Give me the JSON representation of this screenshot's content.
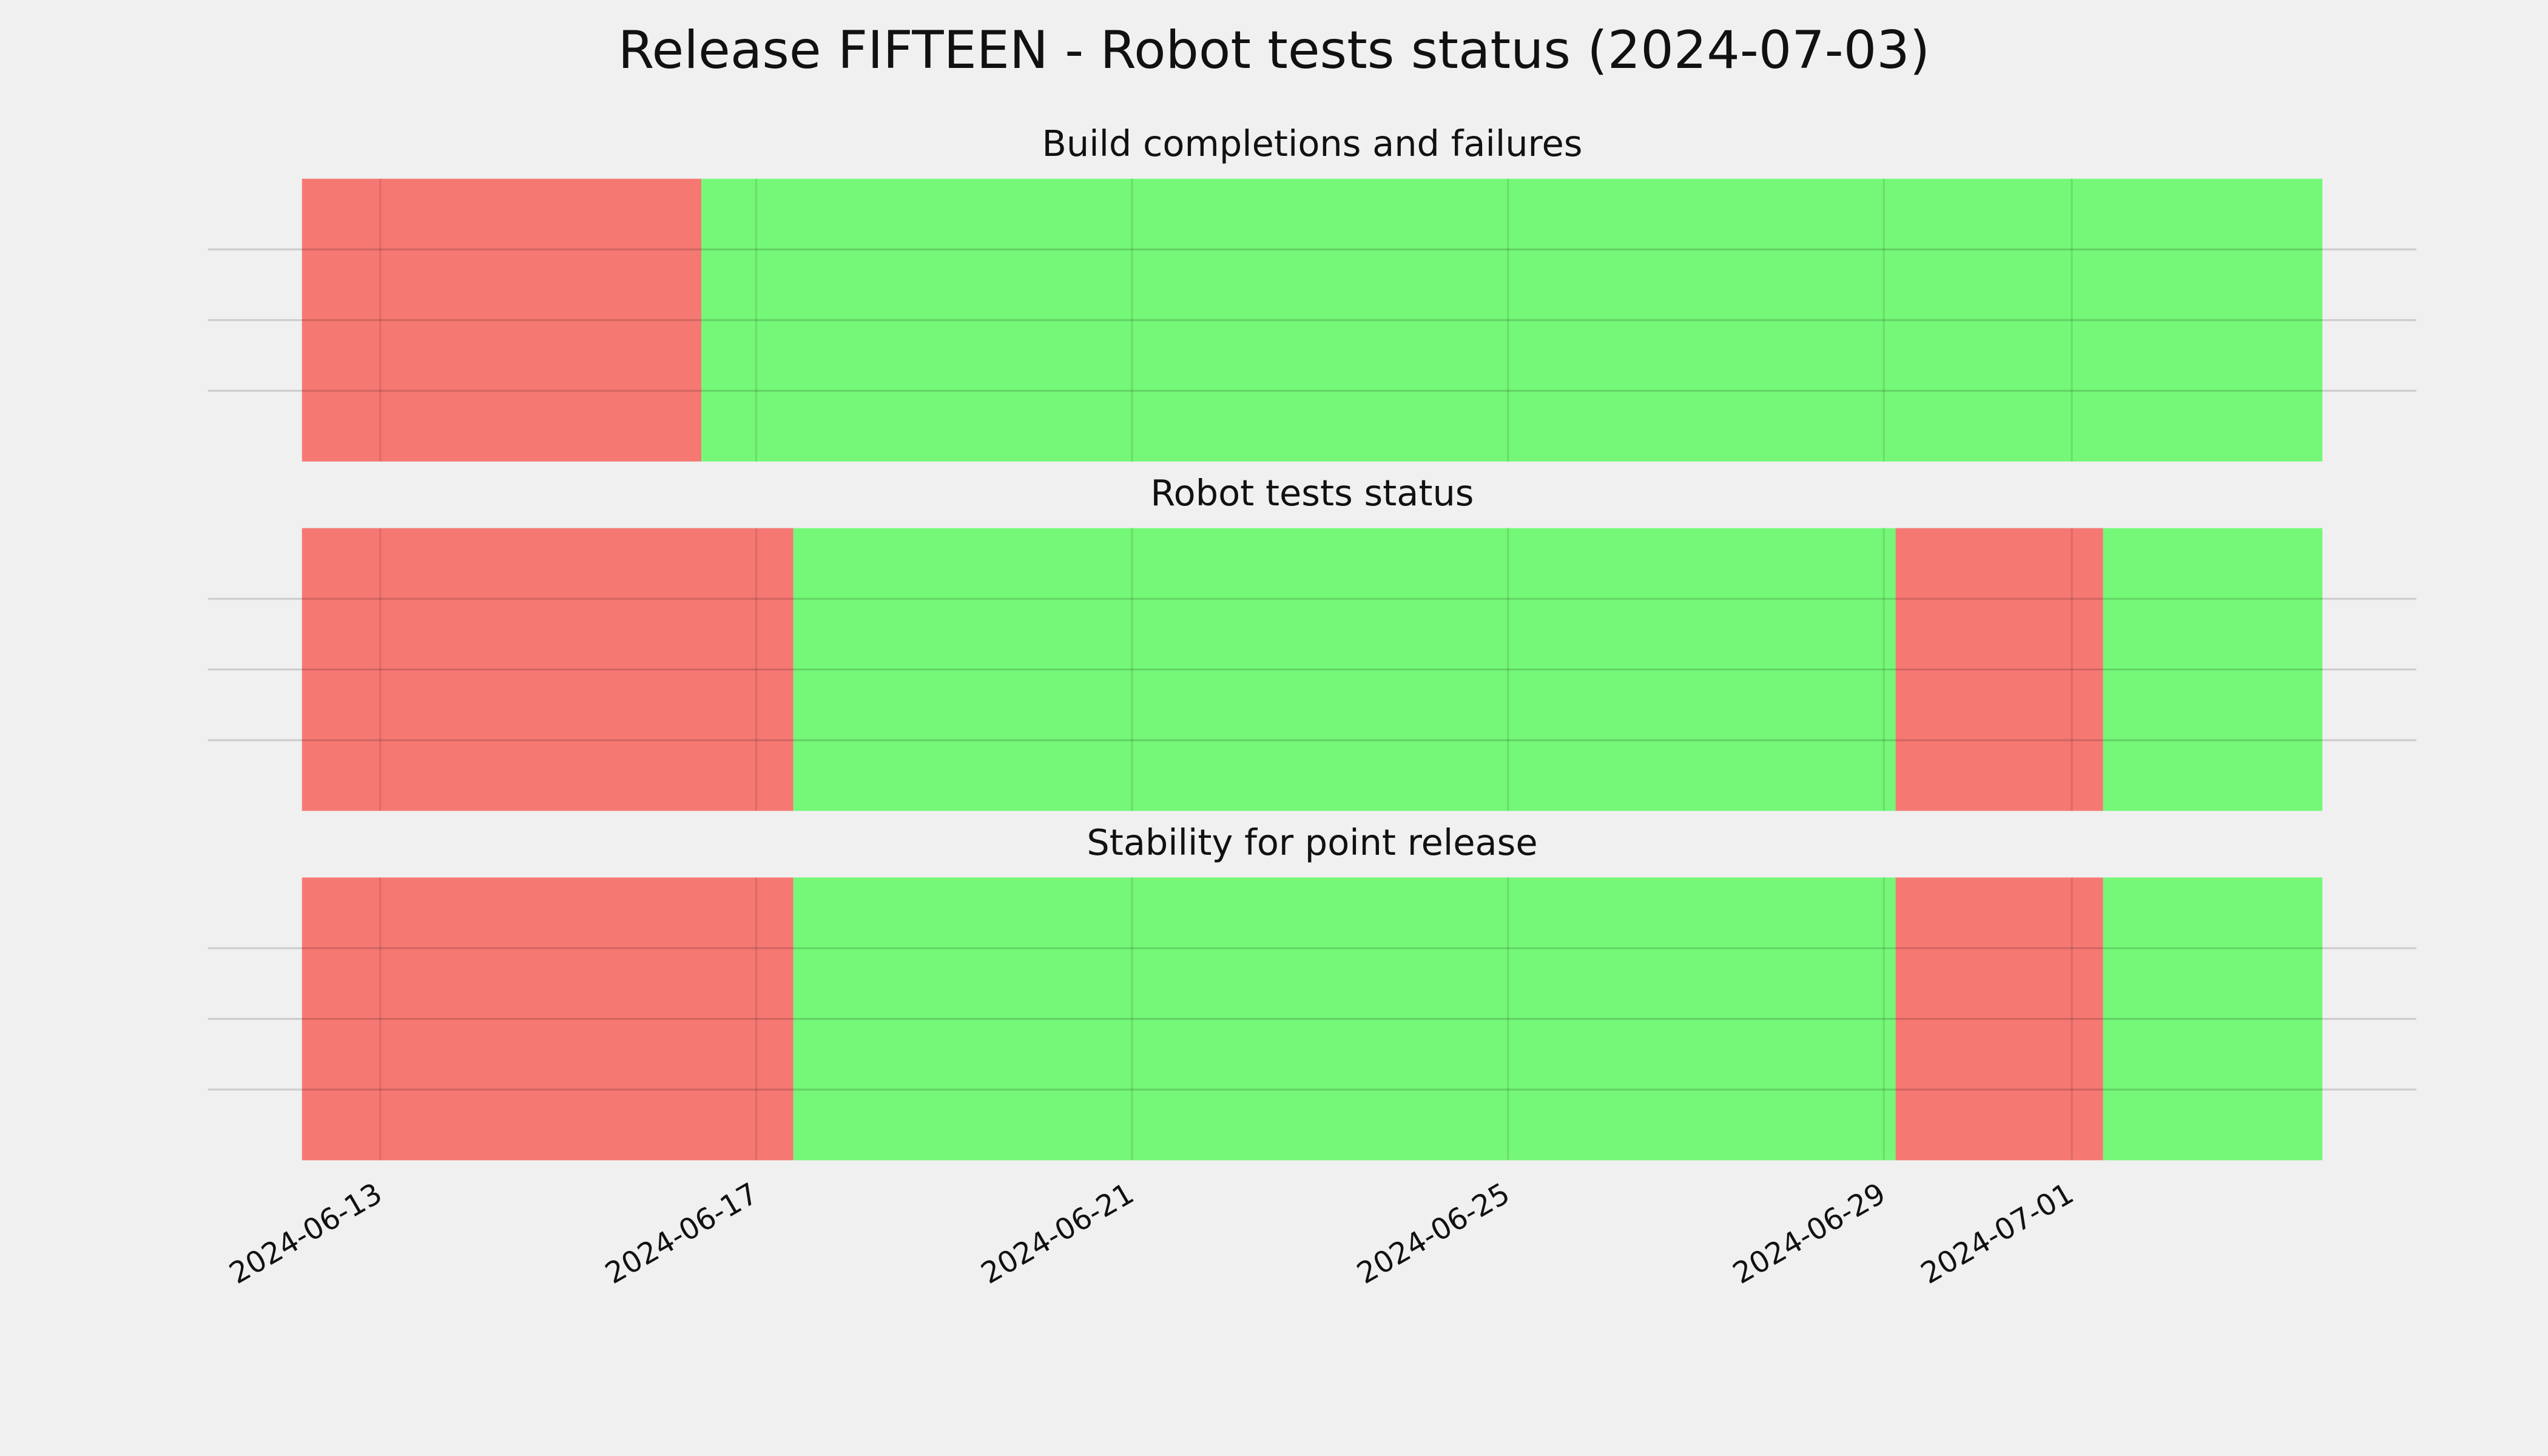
{
  "title": "Release FIFTEEN - Robot tests status (2024-07-03)",
  "chart_data": [
    {
      "type": "span",
      "title": "Build completions and failures",
      "spans": [
        {
          "start": "2024-06-12T04:00",
          "end": "2024-06-16T10:00",
          "color": "#f67873"
        },
        {
          "start": "2024-06-16T10:00",
          "end": "2024-07-03T16:00",
          "color": "#75f878"
        }
      ],
      "xlim": [
        "2024-06-11T04:00",
        "2024-07-04T16:00"
      ],
      "xticks": [
        "2024-06-13",
        "2024-06-17",
        "2024-06-21",
        "2024-06-25",
        "2024-06-29",
        "2024-07-01"
      ],
      "ylim": [
        0,
        1
      ],
      "yticks": [
        0.25,
        0.5,
        0.75
      ],
      "grid": true
    },
    {
      "type": "span",
      "title": "Robot tests status",
      "spans": [
        {
          "start": "2024-06-12T04:00",
          "end": "2024-06-17T09:30",
          "color": "#f67873"
        },
        {
          "start": "2024-06-17T09:30",
          "end": "2024-06-29T03:00",
          "color": "#75f878"
        },
        {
          "start": "2024-06-29T03:00",
          "end": "2024-07-01T08:00",
          "color": "#f67873"
        },
        {
          "start": "2024-07-01T08:00",
          "end": "2024-07-03T16:00",
          "color": "#75f878"
        }
      ],
      "xlim": [
        "2024-06-11T04:00",
        "2024-07-04T16:00"
      ],
      "xticks": [
        "2024-06-13",
        "2024-06-17",
        "2024-06-21",
        "2024-06-25",
        "2024-06-29",
        "2024-07-01"
      ],
      "ylim": [
        0,
        1
      ],
      "yticks": [
        0.25,
        0.5,
        0.75
      ],
      "grid": true
    },
    {
      "type": "span",
      "title": "Stability for point release",
      "spans": [
        {
          "start": "2024-06-12T04:00",
          "end": "2024-06-17T09:30",
          "color": "#f67873"
        },
        {
          "start": "2024-06-17T09:30",
          "end": "2024-06-29T03:00",
          "color": "#75f878"
        },
        {
          "start": "2024-06-29T03:00",
          "end": "2024-07-01T08:00",
          "color": "#f67873"
        },
        {
          "start": "2024-07-01T08:00",
          "end": "2024-07-03T16:00",
          "color": "#75f878"
        }
      ],
      "xlim": [
        "2024-06-11T04:00",
        "2024-07-04T16:00"
      ],
      "xticks": [
        "2024-06-13",
        "2024-06-17",
        "2024-06-21",
        "2024-06-25",
        "2024-06-29",
        "2024-07-01"
      ],
      "ylim": [
        0,
        1
      ],
      "yticks": [
        0.25,
        0.5,
        0.75
      ],
      "grid": true
    }
  ]
}
